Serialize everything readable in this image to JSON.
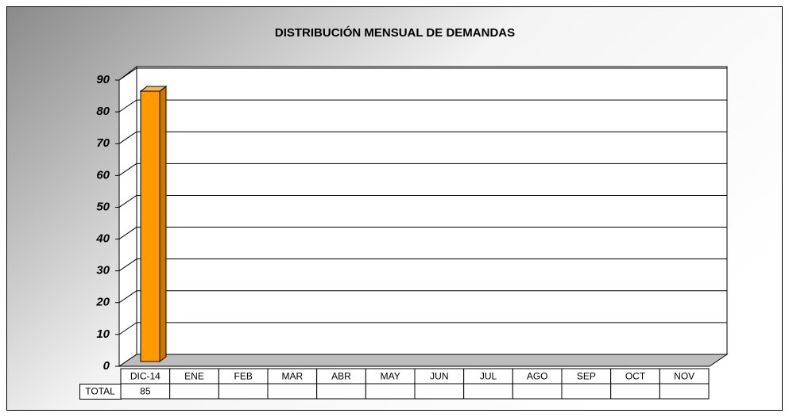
{
  "chart_data": {
    "type": "bar3d",
    "title": "DISTRIBUCIÓN MENSUAL DE DEMANDAS",
    "categories": [
      "DIC-14",
      "ENE",
      "FEB",
      "MAR",
      "ABR",
      "MAY",
      "JUN",
      "JUL",
      "AGO",
      "SEP",
      "OCT",
      "NOV"
    ],
    "series": [
      {
        "name": "TOTAL",
        "color": "#ff9900",
        "values": [
          85,
          null,
          null,
          null,
          null,
          null,
          null,
          null,
          null,
          null,
          null,
          null
        ]
      }
    ],
    "ylim": [
      0,
      90
    ],
    "yticks": [
      0,
      10,
      20,
      30,
      40,
      50,
      60,
      70,
      80,
      90
    ],
    "grid": true
  }
}
